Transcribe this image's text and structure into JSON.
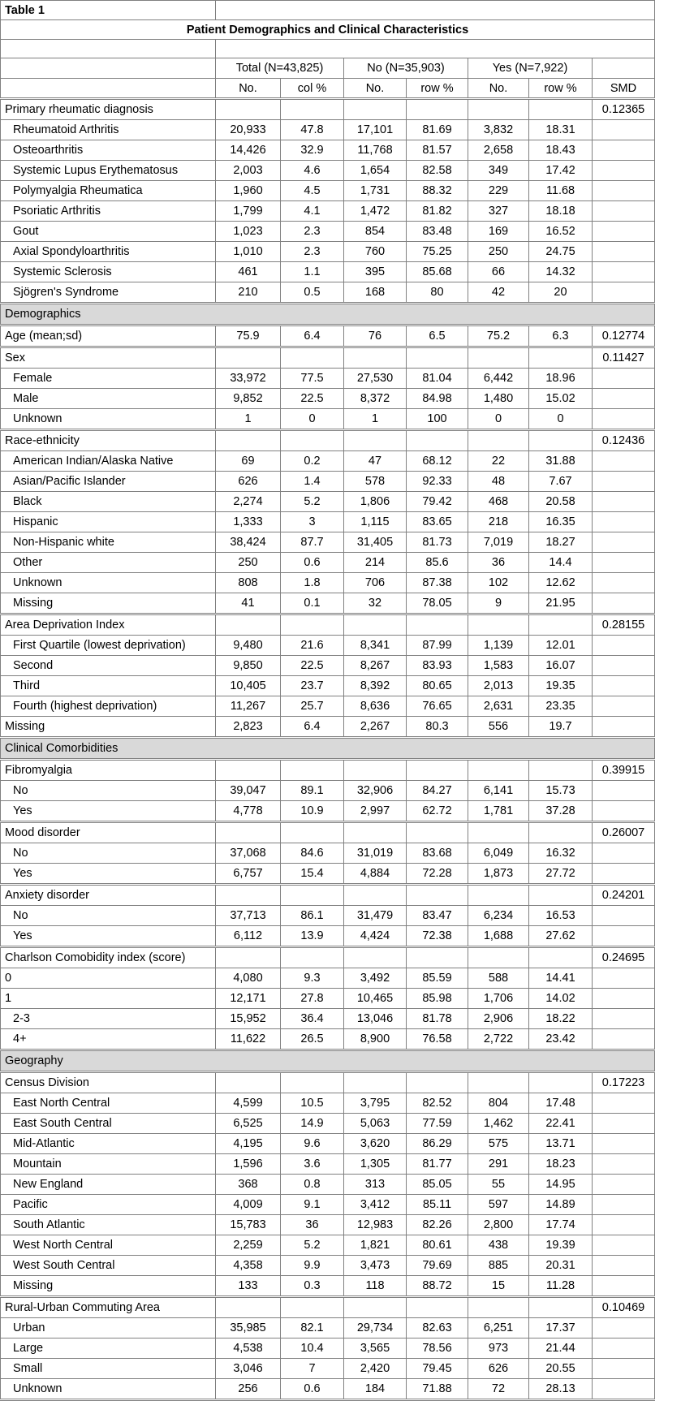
{
  "sheet_label": "Table 1",
  "title": "Patient Demographics and Clinical Characteristics",
  "colors": {
    "section_fill": "#d9d9d9",
    "grid_line": "#808080",
    "background": "#ffffff",
    "text": "#000000"
  },
  "columns": {
    "groups": [
      {
        "label": "Total (N=43,825)"
      },
      {
        "label": "No (N=35,903)"
      },
      {
        "label": "Yes (N=7,922)"
      }
    ],
    "subheaders": [
      "No.",
      "col %",
      "No.",
      "row %",
      "No.",
      "row %",
      "SMD"
    ]
  },
  "rows": [
    {
      "kind": "variable",
      "indent": 0,
      "label": "Primary rheumatic diagnosis",
      "smd": "0.12365"
    },
    {
      "kind": "data",
      "indent": 1,
      "label": "Rheumatoid Arthritis",
      "values": [
        "20,933",
        "47.8",
        "17,101",
        "81.69",
        "3,832",
        "18.31"
      ]
    },
    {
      "kind": "data",
      "indent": 1,
      "label": "Osteoarthritis",
      "values": [
        "14,426",
        "32.9",
        "11,768",
        "81.57",
        "2,658",
        "18.43"
      ]
    },
    {
      "kind": "data",
      "indent": 1,
      "label": "Systemic Lupus Erythematosus",
      "values": [
        "2,003",
        "4.6",
        "1,654",
        "82.58",
        "349",
        "17.42"
      ]
    },
    {
      "kind": "data",
      "indent": 1,
      "label": "Polymyalgia Rheumatica",
      "values": [
        "1,960",
        "4.5",
        "1,731",
        "88.32",
        "229",
        "11.68"
      ]
    },
    {
      "kind": "data",
      "indent": 1,
      "label": "Psoriatic Arthritis",
      "values": [
        "1,799",
        "4.1",
        "1,472",
        "81.82",
        "327",
        "18.18"
      ]
    },
    {
      "kind": "data",
      "indent": 1,
      "label": "Gout",
      "values": [
        "1,023",
        "2.3",
        "854",
        "83.48",
        "169",
        "16.52"
      ]
    },
    {
      "kind": "data",
      "indent": 1,
      "label": "Axial Spondyloarthritis",
      "values": [
        "1,010",
        "2.3",
        "760",
        "75.25",
        "250",
        "24.75"
      ]
    },
    {
      "kind": "data",
      "indent": 1,
      "label": "Systemic Sclerosis",
      "values": [
        "461",
        "1.1",
        "395",
        "85.68",
        "66",
        "14.32"
      ]
    },
    {
      "kind": "data",
      "indent": 1,
      "label": "Sjögren's Syndrome",
      "values": [
        "210",
        "0.5",
        "168",
        "80",
        "42",
        "20"
      ]
    },
    {
      "kind": "section",
      "label": "Demographics"
    },
    {
      "kind": "variable",
      "indent": 0,
      "label": "Age (mean;sd)",
      "values": [
        "75.9",
        "6.4",
        "76",
        "6.5",
        "75.2",
        "6.3"
      ],
      "smd": "0.12774"
    },
    {
      "kind": "variable",
      "indent": 0,
      "label": "Sex",
      "smd": "0.11427"
    },
    {
      "kind": "data",
      "indent": 1,
      "label": "Female",
      "values": [
        "33,972",
        "77.5",
        "27,530",
        "81.04",
        "6,442",
        "18.96"
      ]
    },
    {
      "kind": "data",
      "indent": 1,
      "label": "Male",
      "values": [
        "9,852",
        "22.5",
        "8,372",
        "84.98",
        "1,480",
        "15.02"
      ]
    },
    {
      "kind": "data",
      "indent": 1,
      "label": "Unknown",
      "values": [
        "1",
        "0",
        "1",
        "100",
        "0",
        "0"
      ]
    },
    {
      "kind": "variable",
      "indent": 0,
      "label": "Race-ethnicity",
      "smd": "0.12436"
    },
    {
      "kind": "data",
      "indent": 1,
      "label": "American Indian/Alaska Native",
      "values": [
        "69",
        "0.2",
        "47",
        "68.12",
        "22",
        "31.88"
      ]
    },
    {
      "kind": "data",
      "indent": 1,
      "label": "Asian/Pacific Islander",
      "values": [
        "626",
        "1.4",
        "578",
        "92.33",
        "48",
        "7.67"
      ]
    },
    {
      "kind": "data",
      "indent": 1,
      "label": "Black",
      "values": [
        "2,274",
        "5.2",
        "1,806",
        "79.42",
        "468",
        "20.58"
      ]
    },
    {
      "kind": "data",
      "indent": 1,
      "label": "Hispanic",
      "values": [
        "1,333",
        "3",
        "1,115",
        "83.65",
        "218",
        "16.35"
      ]
    },
    {
      "kind": "data",
      "indent": 1,
      "label": "Non-Hispanic white",
      "values": [
        "38,424",
        "87.7",
        "31,405",
        "81.73",
        "7,019",
        "18.27"
      ]
    },
    {
      "kind": "data",
      "indent": 1,
      "label": "Other",
      "values": [
        "250",
        "0.6",
        "214",
        "85.6",
        "36",
        "14.4"
      ]
    },
    {
      "kind": "data",
      "indent": 1,
      "label": "Unknown",
      "values": [
        "808",
        "1.8",
        "706",
        "87.38",
        "102",
        "12.62"
      ]
    },
    {
      "kind": "data",
      "indent": 1,
      "label": "Missing",
      "values": [
        "41",
        "0.1",
        "32",
        "78.05",
        "9",
        "21.95"
      ]
    },
    {
      "kind": "variable",
      "indent": 0,
      "label": "Area Deprivation Index",
      "smd": "0.28155"
    },
    {
      "kind": "data",
      "indent": 1,
      "label": "First Quartile (lowest deprivation)",
      "values": [
        "9,480",
        "21.6",
        "8,341",
        "87.99",
        "1,139",
        "12.01"
      ]
    },
    {
      "kind": "data",
      "indent": 1,
      "label": "Second",
      "values": [
        "9,850",
        "22.5",
        "8,267",
        "83.93",
        "1,583",
        "16.07"
      ]
    },
    {
      "kind": "data",
      "indent": 1,
      "label": "Third",
      "values": [
        "10,405",
        "23.7",
        "8,392",
        "80.65",
        "2,013",
        "19.35"
      ]
    },
    {
      "kind": "data",
      "indent": 1,
      "label": "Fourth (highest deprivation)",
      "values": [
        "11,267",
        "25.7",
        "8,636",
        "76.65",
        "2,631",
        "23.35"
      ]
    },
    {
      "kind": "data",
      "indent": 0,
      "label": "Missing",
      "values": [
        "2,823",
        "6.4",
        "2,267",
        "80.3",
        "556",
        "19.7"
      ]
    },
    {
      "kind": "section",
      "label": "Clinical Comorbidities"
    },
    {
      "kind": "variable",
      "indent": 0,
      "label": "Fibromyalgia",
      "smd": "0.39915"
    },
    {
      "kind": "data",
      "indent": 1,
      "label": "No",
      "values": [
        "39,047",
        "89.1",
        "32,906",
        "84.27",
        "6,141",
        "15.73"
      ]
    },
    {
      "kind": "data",
      "indent": 1,
      "label": "Yes",
      "values": [
        "4,778",
        "10.9",
        "2,997",
        "62.72",
        "1,781",
        "37.28"
      ]
    },
    {
      "kind": "variable",
      "indent": 0,
      "label": "Mood disorder",
      "smd": "0.26007"
    },
    {
      "kind": "data",
      "indent": 1,
      "label": "No",
      "values": [
        "37,068",
        "84.6",
        "31,019",
        "83.68",
        "6,049",
        "16.32"
      ]
    },
    {
      "kind": "data",
      "indent": 1,
      "label": "Yes",
      "values": [
        "6,757",
        "15.4",
        "4,884",
        "72.28",
        "1,873",
        "27.72"
      ]
    },
    {
      "kind": "variable",
      "indent": 0,
      "label": "Anxiety disorder",
      "smd": "0.24201"
    },
    {
      "kind": "data",
      "indent": 1,
      "label": "No",
      "values": [
        "37,713",
        "86.1",
        "31,479",
        "83.47",
        "6,234",
        "16.53"
      ]
    },
    {
      "kind": "data",
      "indent": 1,
      "label": "Yes",
      "values": [
        "6,112",
        "13.9",
        "4,424",
        "72.38",
        "1,688",
        "27.62"
      ]
    },
    {
      "kind": "variable",
      "indent": 0,
      "label": "Charlson Comobidity index (score)",
      "smd": "0.24695"
    },
    {
      "kind": "data",
      "indent": 0,
      "label": "0",
      "values": [
        "4,080",
        "9.3",
        "3,492",
        "85.59",
        "588",
        "14.41"
      ]
    },
    {
      "kind": "data",
      "indent": 0,
      "label": "1",
      "values": [
        "12,171",
        "27.8",
        "10,465",
        "85.98",
        "1,706",
        "14.02"
      ]
    },
    {
      "kind": "data",
      "indent": 1,
      "label": "2-3",
      "values": [
        "15,952",
        "36.4",
        "13,046",
        "81.78",
        "2,906",
        "18.22"
      ]
    },
    {
      "kind": "data",
      "indent": 1,
      "label": "4+",
      "values": [
        "11,622",
        "26.5",
        "8,900",
        "76.58",
        "2,722",
        "23.42"
      ]
    },
    {
      "kind": "section",
      "label": "Geography"
    },
    {
      "kind": "variable",
      "indent": 0,
      "label": "Census Division",
      "smd": "0.17223"
    },
    {
      "kind": "data",
      "indent": 1,
      "label": "East North Central",
      "values": [
        "4,599",
        "10.5",
        "3,795",
        "82.52",
        "804",
        "17.48"
      ]
    },
    {
      "kind": "data",
      "indent": 1,
      "label": "East South Central",
      "values": [
        "6,525",
        "14.9",
        "5,063",
        "77.59",
        "1,462",
        "22.41"
      ]
    },
    {
      "kind": "data",
      "indent": 1,
      "label": "Mid-Atlantic",
      "values": [
        "4,195",
        "9.6",
        "3,620",
        "86.29",
        "575",
        "13.71"
      ]
    },
    {
      "kind": "data",
      "indent": 1,
      "label": "Mountain",
      "values": [
        "1,596",
        "3.6",
        "1,305",
        "81.77",
        "291",
        "18.23"
      ]
    },
    {
      "kind": "data",
      "indent": 1,
      "label": "New England",
      "values": [
        "368",
        "0.8",
        "313",
        "85.05",
        "55",
        "14.95"
      ]
    },
    {
      "kind": "data",
      "indent": 1,
      "label": "Pacific",
      "values": [
        "4,009",
        "9.1",
        "3,412",
        "85.11",
        "597",
        "14.89"
      ]
    },
    {
      "kind": "data",
      "indent": 1,
      "label": "South Atlantic",
      "values": [
        "15,783",
        "36",
        "12,983",
        "82.26",
        "2,800",
        "17.74"
      ]
    },
    {
      "kind": "data",
      "indent": 1,
      "label": "West North Central",
      "values": [
        "2,259",
        "5.2",
        "1,821",
        "80.61",
        "438",
        "19.39"
      ]
    },
    {
      "kind": "data",
      "indent": 1,
      "label": "West South Central",
      "values": [
        "4,358",
        "9.9",
        "3,473",
        "79.69",
        "885",
        "20.31"
      ]
    },
    {
      "kind": "data",
      "indent": 1,
      "label": "Missing",
      "values": [
        "133",
        "0.3",
        "118",
        "88.72",
        "15",
        "11.28"
      ]
    },
    {
      "kind": "variable",
      "indent": 0,
      "label": "Rural-Urban Commuting Area",
      "smd": "0.10469"
    },
    {
      "kind": "data",
      "indent": 1,
      "label": "Urban",
      "values": [
        "35,985",
        "82.1",
        "29,734",
        "82.63",
        "6,251",
        "17.37"
      ]
    },
    {
      "kind": "data",
      "indent": 1,
      "label": "Large",
      "values": [
        "4,538",
        "10.4",
        "3,565",
        "78.56",
        "973",
        "21.44"
      ]
    },
    {
      "kind": "data",
      "indent": 1,
      "label": "Small",
      "values": [
        "3,046",
        "7",
        "2,420",
        "79.45",
        "626",
        "20.55"
      ]
    },
    {
      "kind": "data",
      "indent": 1,
      "label": "Unknown",
      "values": [
        "256",
        "0.6",
        "184",
        "71.88",
        "72",
        "28.13"
      ]
    }
  ]
}
